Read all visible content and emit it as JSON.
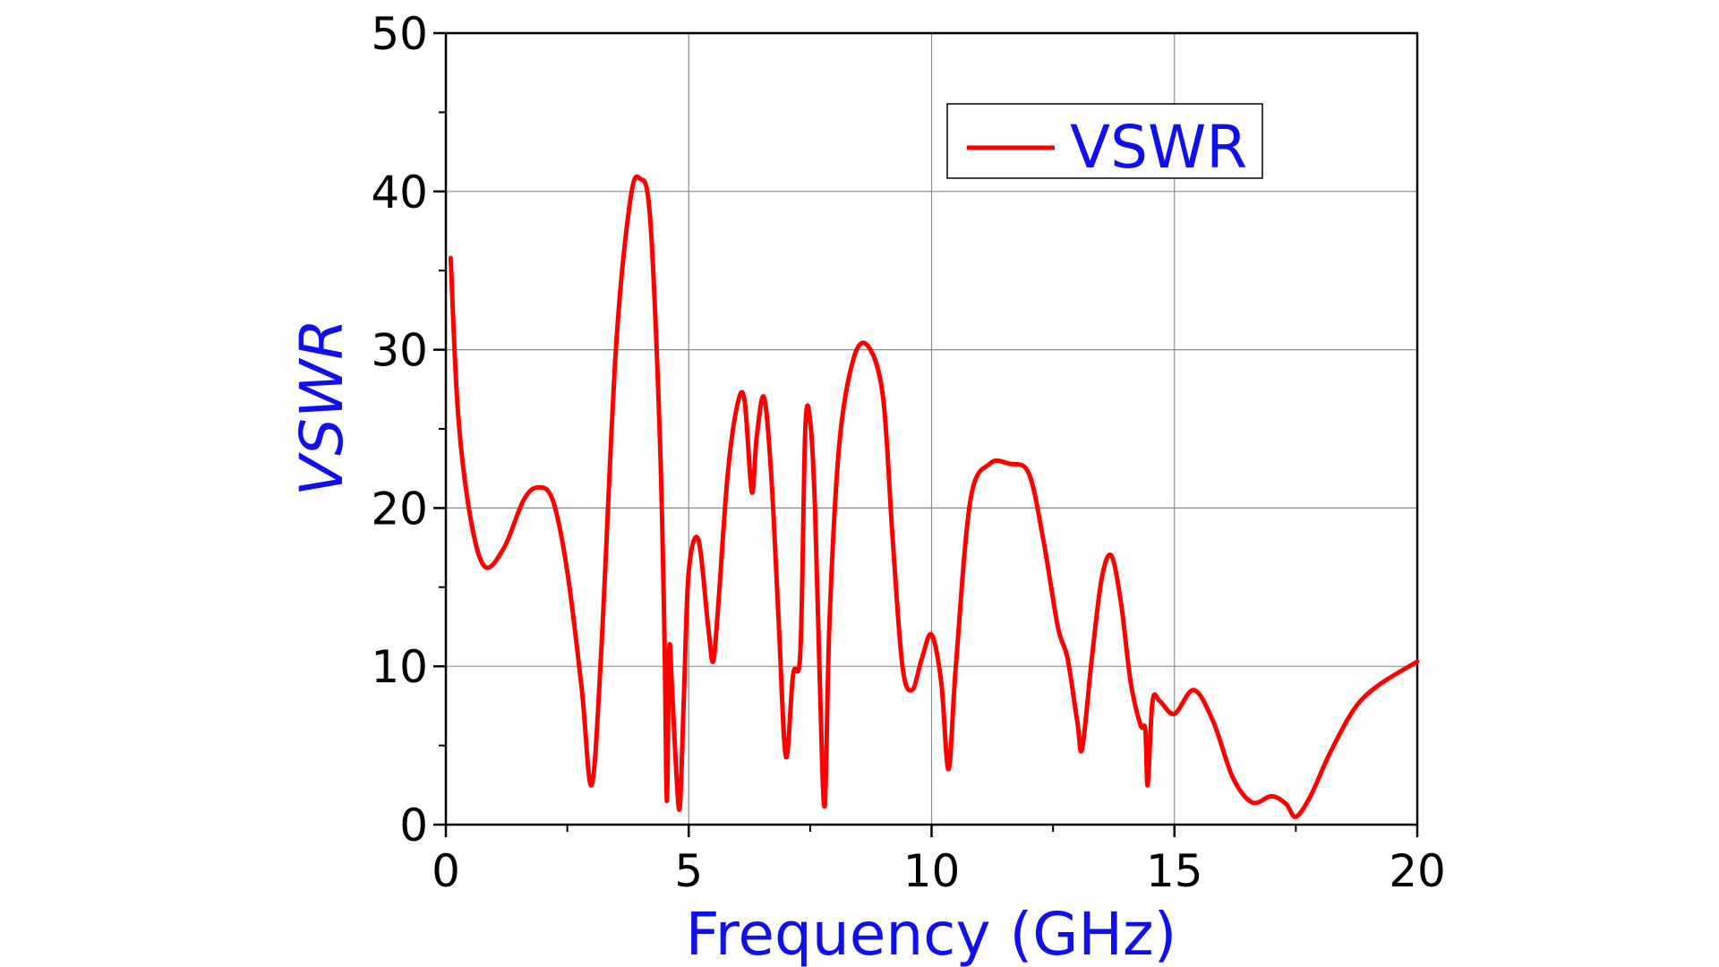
{
  "chart_data": {
    "type": "line",
    "title": "",
    "xlabel": "Frequency (GHz)",
    "ylabel": "VSWR",
    "xlim": [
      0,
      20
    ],
    "ylim": [
      0,
      50
    ],
    "xticks": [
      0,
      5,
      10,
      15,
      20
    ],
    "yticks": [
      0,
      10,
      20,
      30,
      40,
      50
    ],
    "grid": true,
    "legend_position": "top-right",
    "label_color": "#1010ee",
    "series": [
      {
        "name": "VSWR",
        "color": "#ff0000",
        "x": [
          0.1,
          0.25,
          0.5,
          0.8,
          1.2,
          1.6,
          1.9,
          2.2,
          2.5,
          2.8,
          3.0,
          3.2,
          3.5,
          3.8,
          4.0,
          4.2,
          4.4,
          4.5,
          4.55,
          4.6,
          4.65,
          4.75,
          4.82,
          4.9,
          5.0,
          5.2,
          5.4,
          5.5,
          5.6,
          5.8,
          6.0,
          6.15,
          6.3,
          6.4,
          6.55,
          6.7,
          6.85,
          7.0,
          7.15,
          7.3,
          7.4,
          7.5,
          7.6,
          7.7,
          7.8,
          7.9,
          8.1,
          8.4,
          8.7,
          9.0,
          9.2,
          9.4,
          9.6,
          9.8,
          10.0,
          10.2,
          10.35,
          10.5,
          10.8,
          11.2,
          11.6,
          12.0,
          12.3,
          12.6,
          12.8,
          13.0,
          13.1,
          13.3,
          13.5,
          13.7,
          13.9,
          14.1,
          14.3,
          14.4,
          14.45,
          14.55,
          14.7,
          15.0,
          15.4,
          15.8,
          16.2,
          16.6,
          17.0,
          17.3,
          17.5,
          17.8,
          18.2,
          18.7,
          19.2,
          20.0
        ],
        "y": [
          35.8,
          26.0,
          19.5,
          16.3,
          17.5,
          20.5,
          21.3,
          20.5,
          16.0,
          8.5,
          2.5,
          11.0,
          30.0,
          39.5,
          40.8,
          38.5,
          25.0,
          12.0,
          1.5,
          11.0,
          9.0,
          3.0,
          1.2,
          8.0,
          16.0,
          18.0,
          12.5,
          10.3,
          13.5,
          22.0,
          26.5,
          26.8,
          21.0,
          24.5,
          27.0,
          22.0,
          13.0,
          4.3,
          9.5,
          11.0,
          25.0,
          25.5,
          20.0,
          9.0,
          1.2,
          13.0,
          24.0,
          29.5,
          30.2,
          27.0,
          18.0,
          10.0,
          8.5,
          10.5,
          12.0,
          9.0,
          3.5,
          10.0,
          20.5,
          22.8,
          22.8,
          22.2,
          18.0,
          12.5,
          10.5,
          6.5,
          4.8,
          10.5,
          15.5,
          17.0,
          14.0,
          9.0,
          6.3,
          6.0,
          2.5,
          7.8,
          7.8,
          7.0,
          8.5,
          6.5,
          3.0,
          1.4,
          1.8,
          1.3,
          0.5,
          1.8,
          4.5,
          7.3,
          8.8,
          10.3
        ]
      }
    ]
  }
}
